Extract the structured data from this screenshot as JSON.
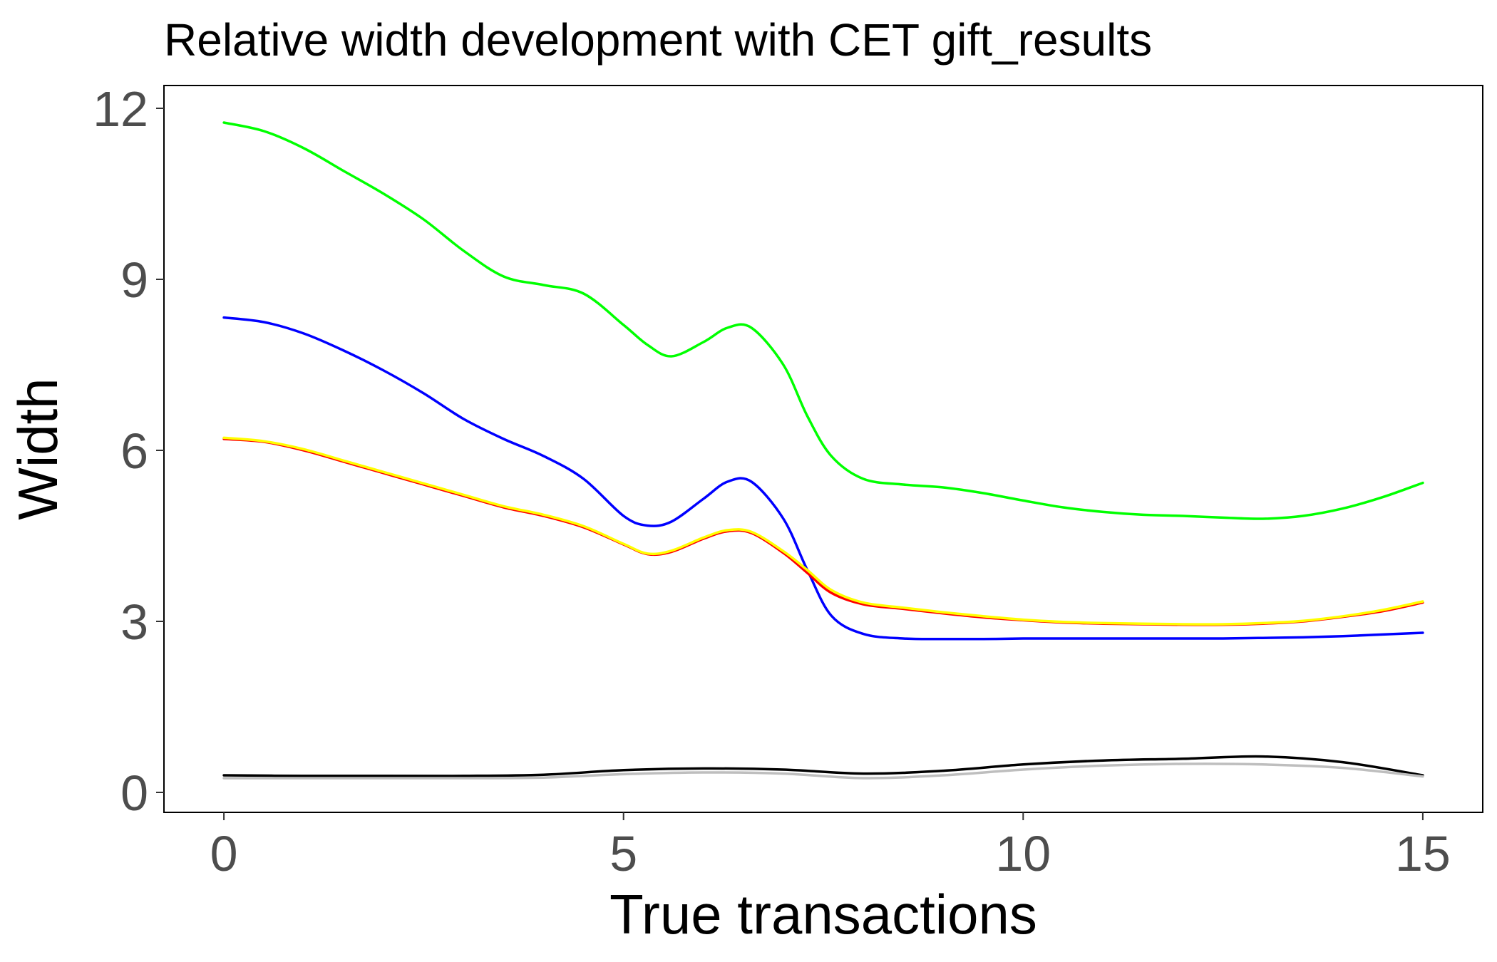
{
  "chart_data": {
    "type": "line",
    "title": "Relative width development with CET gift_results",
    "xlabel": "True transactions",
    "ylabel": "Width",
    "xlim": [
      -0.75,
      15.75
    ],
    "ylim": [
      -0.35,
      12.4
    ],
    "x_ticks": [
      0,
      5,
      10,
      15
    ],
    "x_tick_labels": [
      "0",
      "5",
      "10",
      "15"
    ],
    "y_ticks": [
      0,
      3,
      6,
      9,
      12
    ],
    "y_tick_labels": [
      "0",
      "3",
      "6",
      "9",
      "12"
    ],
    "grid": false,
    "legend": "none",
    "series": [
      {
        "color": "#00ff00",
        "x": [
          0,
          0.5,
          1,
          1.5,
          2,
          2.5,
          3,
          3.5,
          4,
          4.5,
          5,
          5.3,
          5.6,
          6,
          6.3,
          6.6,
          7,
          7.3,
          7.6,
          8,
          8.5,
          9,
          9.5,
          10,
          10.5,
          11,
          11.5,
          12,
          12.5,
          13,
          13.5,
          14,
          14.5,
          15
        ],
        "y": [
          11.75,
          11.6,
          11.3,
          10.9,
          10.5,
          10.05,
          9.5,
          9.05,
          8.9,
          8.75,
          8.2,
          7.85,
          7.65,
          7.9,
          8.15,
          8.15,
          7.5,
          6.6,
          5.9,
          5.5,
          5.4,
          5.35,
          5.25,
          5.12,
          5.0,
          4.92,
          4.87,
          4.85,
          4.82,
          4.8,
          4.85,
          4.98,
          5.18,
          5.43
        ]
      },
      {
        "color": "#0000ff",
        "x": [
          0,
          0.5,
          1,
          1.5,
          2,
          2.5,
          3,
          3.5,
          4,
          4.5,
          5,
          5.3,
          5.6,
          6,
          6.3,
          6.6,
          7,
          7.3,
          7.6,
          8,
          8.5,
          9,
          9.5,
          10,
          10.5,
          11,
          11.5,
          12,
          12.5,
          13,
          13.5,
          14,
          14.5,
          15
        ],
        "y": [
          8.33,
          8.25,
          8.05,
          7.75,
          7.4,
          7.0,
          6.55,
          6.2,
          5.9,
          5.5,
          4.85,
          4.68,
          4.75,
          5.15,
          5.45,
          5.45,
          4.8,
          3.9,
          3.1,
          2.78,
          2.7,
          2.69,
          2.69,
          2.7,
          2.7,
          2.7,
          2.7,
          2.7,
          2.7,
          2.71,
          2.72,
          2.74,
          2.77,
          2.8
        ]
      },
      {
        "color": "#ff0000",
        "x": [
          0,
          0.5,
          1,
          1.5,
          2,
          2.5,
          3,
          3.5,
          4,
          4.5,
          5,
          5.3,
          5.6,
          6,
          6.3,
          6.6,
          7,
          7.3,
          7.6,
          8,
          8.5,
          9,
          9.5,
          10,
          10.5,
          11,
          11.5,
          12,
          12.5,
          13,
          13.5,
          14,
          14.5,
          15
        ],
        "y": [
          6.2,
          6.15,
          6.0,
          5.8,
          5.6,
          5.4,
          5.2,
          5.0,
          4.85,
          4.65,
          4.35,
          4.18,
          4.22,
          4.45,
          4.58,
          4.55,
          4.2,
          3.85,
          3.5,
          3.3,
          3.22,
          3.14,
          3.07,
          3.02,
          2.98,
          2.96,
          2.95,
          2.94,
          2.94,
          2.96,
          3.0,
          3.08,
          3.18,
          3.33
        ]
      },
      {
        "color": "#ffff00",
        "x": [
          0,
          0.5,
          1,
          1.5,
          2,
          2.5,
          3,
          3.5,
          4,
          4.5,
          5,
          5.3,
          5.6,
          6,
          6.3,
          6.6,
          7,
          7.3,
          7.6,
          8,
          8.5,
          9,
          9.5,
          10,
          10.5,
          11,
          11.5,
          12,
          12.5,
          13,
          13.5,
          14,
          14.5,
          15
        ],
        "y": [
          6.22,
          6.16,
          6.02,
          5.82,
          5.62,
          5.42,
          5.22,
          5.02,
          4.87,
          4.67,
          4.36,
          4.19,
          4.24,
          4.47,
          4.6,
          4.57,
          4.23,
          3.9,
          3.55,
          3.33,
          3.24,
          3.16,
          3.09,
          3.03,
          2.99,
          2.97,
          2.96,
          2.95,
          2.95,
          2.97,
          3.01,
          3.09,
          3.2,
          3.35
        ]
      },
      {
        "color": "#000000",
        "x": [
          0,
          1,
          2,
          3,
          4,
          5,
          6,
          7,
          8,
          9,
          10,
          11,
          12,
          13,
          14,
          15
        ],
        "y": [
          0.3,
          0.29,
          0.29,
          0.29,
          0.31,
          0.39,
          0.42,
          0.4,
          0.33,
          0.38,
          0.49,
          0.56,
          0.59,
          0.63,
          0.53,
          0.3
        ]
      },
      {
        "color": "#bebebe",
        "x": [
          0,
          1,
          2,
          3,
          4,
          5,
          6,
          7,
          8,
          9,
          10,
          11,
          12,
          13,
          14,
          15
        ],
        "y": [
          0.25,
          0.25,
          0.25,
          0.25,
          0.26,
          0.32,
          0.35,
          0.33,
          0.25,
          0.3,
          0.4,
          0.47,
          0.5,
          0.49,
          0.43,
          0.28
        ]
      }
    ]
  }
}
